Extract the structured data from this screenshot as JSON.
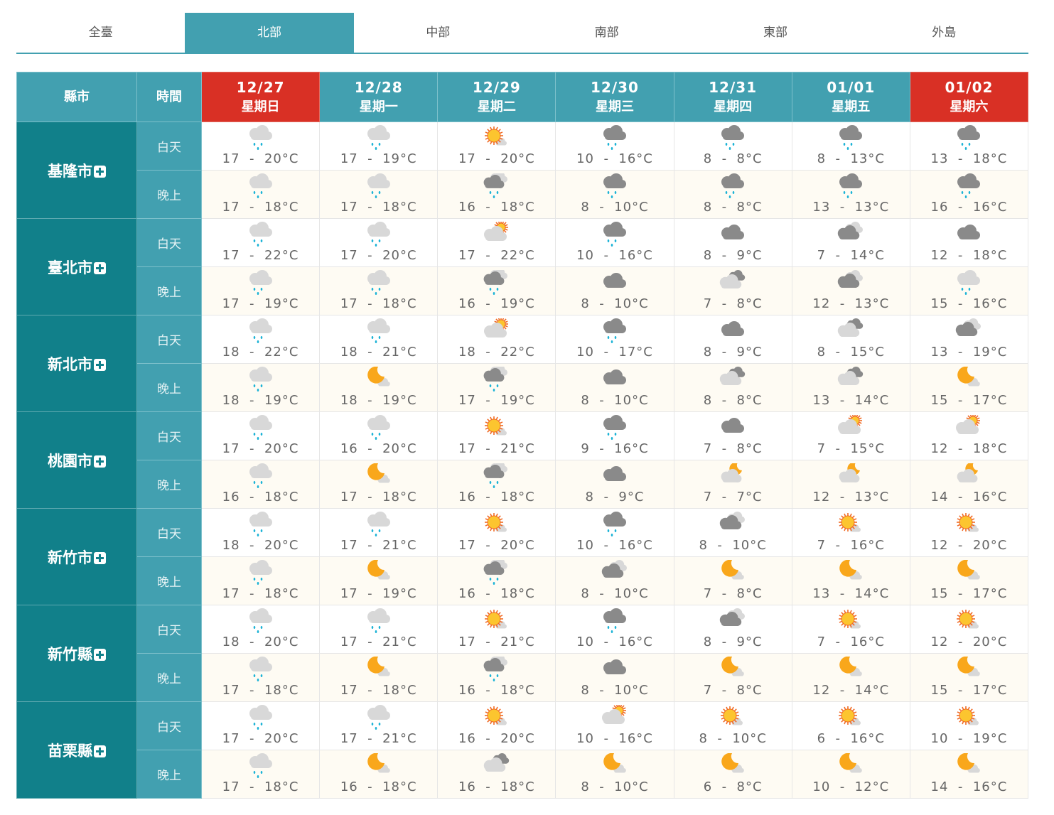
{
  "tabs": [
    {
      "label": "全臺"
    },
    {
      "label": "北部",
      "active": true
    },
    {
      "label": "中部"
    },
    {
      "label": "南部"
    },
    {
      "label": "東部"
    },
    {
      "label": "外島"
    }
  ],
  "table": {
    "city_header": "縣市",
    "time_header": "時間",
    "day_label": "白天",
    "night_label": "晚上",
    "unit": "°C",
    "dates": [
      {
        "date": "12/27",
        "weekday": "星期日",
        "weekend": true
      },
      {
        "date": "12/28",
        "weekday": "星期一",
        "weekend": false
      },
      {
        "date": "12/29",
        "weekday": "星期二",
        "weekend": false
      },
      {
        "date": "12/30",
        "weekday": "星期三",
        "weekend": false
      },
      {
        "date": "12/31",
        "weekday": "星期四",
        "weekend": false
      },
      {
        "date": "01/01",
        "weekday": "星期五",
        "weekend": false
      },
      {
        "date": "01/02",
        "weekday": "星期六",
        "weekend": true
      }
    ],
    "cities": [
      {
        "name": "基隆市",
        "day": [
          [
            "rain-light",
            17,
            20
          ],
          [
            "rain-light",
            17,
            19
          ],
          [
            "sunny",
            17,
            20
          ],
          [
            "rain",
            10,
            16
          ],
          [
            "rain",
            8,
            8
          ],
          [
            "rain",
            8,
            13
          ],
          [
            "rain",
            13,
            18
          ]
        ],
        "night": [
          [
            "rain-light",
            17,
            18
          ],
          [
            "rain-light",
            17,
            18
          ],
          [
            "rain-overcast",
            16,
            18
          ],
          [
            "rain",
            8,
            10
          ],
          [
            "rain",
            8,
            8
          ],
          [
            "rain",
            13,
            13
          ],
          [
            "rain",
            16,
            16
          ]
        ]
      },
      {
        "name": "臺北市",
        "day": [
          [
            "rain-light",
            17,
            22
          ],
          [
            "rain-light",
            17,
            20
          ],
          [
            "partly-cloudy",
            17,
            22
          ],
          [
            "rain",
            10,
            16
          ],
          [
            "cloudy",
            8,
            9
          ],
          [
            "overcast",
            7,
            14
          ],
          [
            "cloudy",
            12,
            18
          ]
        ],
        "night": [
          [
            "rain-light",
            17,
            19
          ],
          [
            "rain-light",
            17,
            18
          ],
          [
            "rain-overcast",
            16,
            19
          ],
          [
            "cloudy",
            8,
            10
          ],
          [
            "mostly-cloudy",
            7,
            8
          ],
          [
            "overcast",
            12,
            13
          ],
          [
            "rain-light",
            15,
            16
          ]
        ]
      },
      {
        "name": "新北市",
        "day": [
          [
            "rain-light",
            18,
            22
          ],
          [
            "rain-light",
            18,
            21
          ],
          [
            "partly-cloudy",
            18,
            22
          ],
          [
            "rain",
            10,
            17
          ],
          [
            "cloudy",
            8,
            9
          ],
          [
            "mostly-cloudy",
            8,
            15
          ],
          [
            "overcast",
            13,
            19
          ]
        ],
        "night": [
          [
            "rain-light",
            18,
            19
          ],
          [
            "clear-night",
            18,
            19
          ],
          [
            "rain-overcast",
            17,
            19
          ],
          [
            "cloudy",
            8,
            10
          ],
          [
            "mostly-cloudy",
            8,
            8
          ],
          [
            "mostly-cloudy",
            13,
            14
          ],
          [
            "clear-night",
            15,
            17
          ]
        ]
      },
      {
        "name": "桃園市",
        "day": [
          [
            "rain-light",
            17,
            20
          ],
          [
            "rain-light",
            16,
            20
          ],
          [
            "sunny",
            17,
            21
          ],
          [
            "rain",
            9,
            16
          ],
          [
            "cloudy",
            7,
            8
          ],
          [
            "partly-cloudy",
            7,
            15
          ],
          [
            "partly-cloudy",
            12,
            18
          ]
        ],
        "night": [
          [
            "rain-light",
            16,
            18
          ],
          [
            "clear-night",
            17,
            18
          ],
          [
            "rain-overcast",
            16,
            18
          ],
          [
            "cloudy",
            8,
            9
          ],
          [
            "cloudy-night",
            7,
            7
          ],
          [
            "cloudy-night",
            12,
            13
          ],
          [
            "cloudy-night",
            14,
            16
          ]
        ]
      },
      {
        "name": "新竹市",
        "day": [
          [
            "rain-light",
            18,
            20
          ],
          [
            "rain-light",
            17,
            21
          ],
          [
            "sunny",
            17,
            20
          ],
          [
            "rain",
            10,
            16
          ],
          [
            "overcast",
            8,
            10
          ],
          [
            "sunny",
            7,
            16
          ],
          [
            "sunny",
            12,
            20
          ]
        ],
        "night": [
          [
            "rain-light",
            17,
            18
          ],
          [
            "clear-night",
            17,
            19
          ],
          [
            "rain-overcast",
            16,
            18
          ],
          [
            "overcast",
            8,
            10
          ],
          [
            "clear-night",
            7,
            8
          ],
          [
            "clear-night",
            13,
            14
          ],
          [
            "clear-night",
            15,
            17
          ]
        ]
      },
      {
        "name": "新竹縣",
        "day": [
          [
            "rain-light",
            18,
            20
          ],
          [
            "rain-light",
            17,
            21
          ],
          [
            "sunny",
            17,
            21
          ],
          [
            "rain",
            10,
            16
          ],
          [
            "overcast",
            8,
            9
          ],
          [
            "sunny",
            7,
            16
          ],
          [
            "sunny",
            12,
            20
          ]
        ],
        "night": [
          [
            "rain-light",
            17,
            18
          ],
          [
            "clear-night",
            17,
            18
          ],
          [
            "rain-overcast",
            16,
            18
          ],
          [
            "cloudy",
            8,
            10
          ],
          [
            "clear-night",
            7,
            8
          ],
          [
            "clear-night",
            12,
            14
          ],
          [
            "clear-night",
            15,
            17
          ]
        ]
      },
      {
        "name": "苗栗縣",
        "day": [
          [
            "rain-light",
            17,
            20
          ],
          [
            "rain-light",
            17,
            21
          ],
          [
            "sunny",
            16,
            20
          ],
          [
            "partly-cloudy",
            10,
            16
          ],
          [
            "sunny",
            8,
            10
          ],
          [
            "sunny",
            6,
            16
          ],
          [
            "sunny",
            10,
            19
          ]
        ],
        "night": [
          [
            "rain-light",
            17,
            18
          ],
          [
            "clear-night",
            16,
            18
          ],
          [
            "mostly-cloudy",
            16,
            18
          ],
          [
            "clear-night",
            8,
            10
          ],
          [
            "clear-night",
            6,
            8
          ],
          [
            "clear-night",
            10,
            12
          ],
          [
            "clear-night",
            14,
            16
          ]
        ]
      }
    ]
  },
  "colors": {
    "accent": "#42a0b0",
    "city_column": "#11808a",
    "weekend": "#d93025",
    "night_row": "#fefbf3",
    "temp_text": "#666666"
  }
}
